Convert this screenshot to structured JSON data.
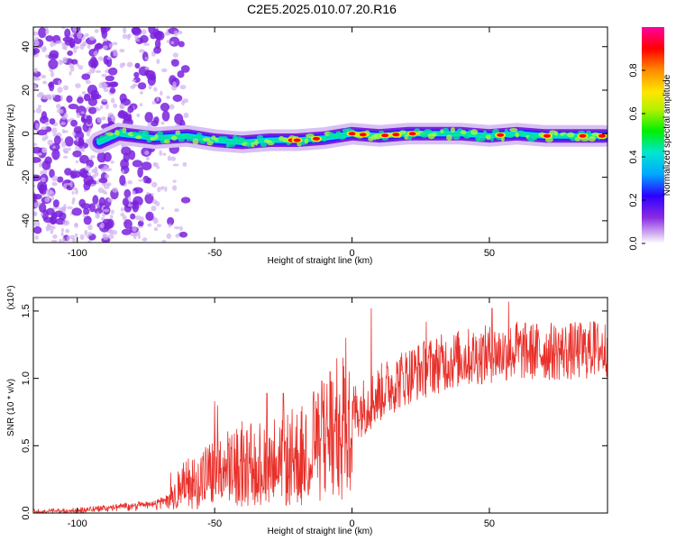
{
  "title": "C2E5.2025.010.07.20.R16",
  "colors": {
    "snr_line": "#e8302a",
    "spectrum_low": "#8a2be2",
    "spectrum_ridge": "#00e0a0",
    "spectrum_peak": "#ff0000"
  },
  "chart_data": [
    {
      "type": "heatmap",
      "name": "spectrogram",
      "xlabel": "Height of straight line (km)",
      "ylabel": "Frequency (Hz)",
      "xlim": [
        -116,
        93
      ],
      "ylim": [
        -50,
        49
      ],
      "xticks": [
        -100,
        -50,
        0,
        50
      ],
      "xtick_labels": [
        "-100",
        "-50",
        "0",
        "50"
      ],
      "yticks": [
        -40,
        -20,
        0,
        20,
        40
      ],
      "ytick_labels": [
        "-40",
        "-20",
        "0",
        "20",
        "40"
      ],
      "colorbar": {
        "label": "Normalized spectral amplitude",
        "range": [
          0,
          1
        ],
        "ticks": [
          0.0,
          0.2,
          0.4,
          0.6,
          0.8
        ],
        "tick_labels": [
          "0.0",
          "0.2",
          "0.4",
          "0.6",
          "0.8"
        ],
        "colormap": "rainbow (purple-blue-cyan-green-yellow-red-magenta)"
      },
      "ridge": {
        "description_points_km_hz": [
          [
            -92,
            -4
          ],
          [
            -85,
            0
          ],
          [
            -72,
            -2
          ],
          [
            -60,
            -1
          ],
          [
            -50,
            -3
          ],
          [
            -40,
            -4
          ],
          [
            -30,
            -3
          ],
          [
            -20,
            -3
          ],
          [
            -10,
            -2
          ],
          [
            0,
            0
          ],
          [
            10,
            -1
          ],
          [
            20,
            0
          ],
          [
            30,
            0
          ],
          [
            40,
            0
          ],
          [
            50,
            -1
          ],
          [
            60,
            0
          ],
          [
            70,
            -1
          ],
          [
            80,
            -1
          ],
          [
            92,
            -1
          ]
        ],
        "peak_heights_km": [
          -22,
          -20,
          -13,
          0,
          4,
          12,
          16,
          22,
          54,
          71,
          84,
          91
        ]
      }
    },
    {
      "type": "line",
      "name": "snr",
      "xlabel": "Height of straight line (km)",
      "ylabel": "SNR (10 * v/v)",
      "y_multiplier": "(x10⁴)",
      "xlim": [
        -116,
        93
      ],
      "ylim": [
        0,
        1.6
      ],
      "xticks": [
        -100,
        -50,
        0,
        50
      ],
      "xtick_labels": [
        "-100",
        "-50",
        "0",
        "50"
      ],
      "yticks": [
        0.0,
        0.5,
        1.0,
        1.5
      ],
      "ytick_labels": [
        "0.0",
        "0.5",
        "1.0",
        "1.5"
      ],
      "envelope_x": [
        -116,
        -100,
        -90,
        -80,
        -72,
        -66,
        -60,
        -50,
        -40,
        -30,
        -20,
        -12,
        -5,
        0,
        5,
        8,
        12,
        20,
        30,
        40,
        50,
        60,
        70,
        80,
        93
      ],
      "envelope_y": [
        0.01,
        0.02,
        0.04,
        0.06,
        0.07,
        0.13,
        0.22,
        0.3,
        0.35,
        0.38,
        0.42,
        0.5,
        0.62,
        0.75,
        0.8,
        0.85,
        0.92,
        1.02,
        1.1,
        1.15,
        1.18,
        1.2,
        1.2,
        1.2,
        1.22
      ],
      "spikes": [
        {
          "x": -66,
          "y": 0.3
        },
        {
          "x": -50,
          "y": 0.83
        },
        {
          "x": -49,
          "y": 0.8
        },
        {
          "x": -40,
          "y": 0.68
        },
        {
          "x": -31,
          "y": 0.89
        },
        {
          "x": -25,
          "y": 0.89
        },
        {
          "x": -14,
          "y": 0.9
        },
        {
          "x": -11,
          "y": 0.98
        },
        {
          "x": -8,
          "y": 1.05
        },
        {
          "x": 7,
          "y": 1.52
        },
        {
          "x": 27,
          "y": 1.42
        },
        {
          "x": 51,
          "y": 1.52
        },
        {
          "x": 57,
          "y": 1.57
        },
        {
          "x": 60,
          "y": 1.42
        },
        {
          "x": 88,
          "y": 1.42
        }
      ]
    }
  ]
}
